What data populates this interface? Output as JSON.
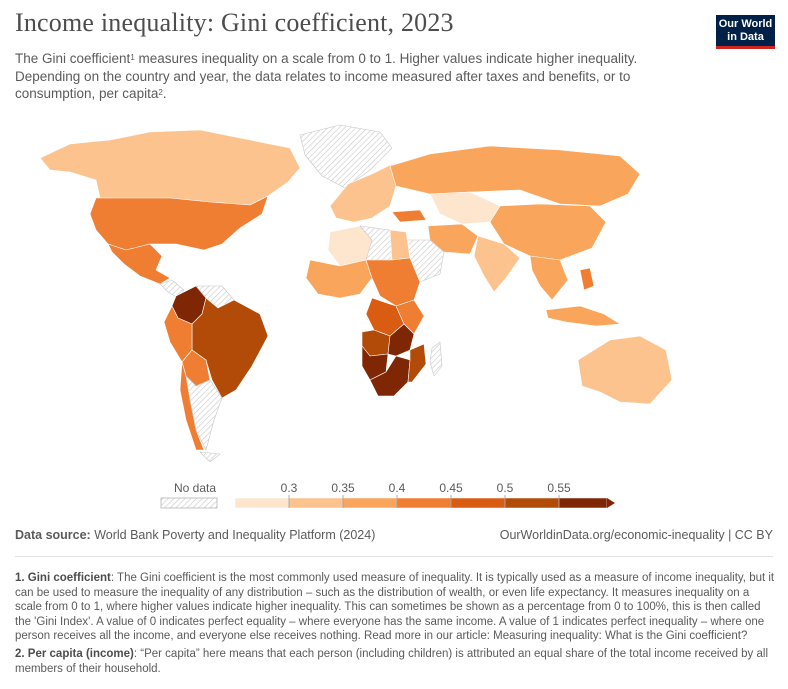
{
  "header": {
    "title": "Income inequality: Gini coefficient, 2023",
    "subtitle_part1": "The Gini coefficient",
    "subtitle_sup1": "1",
    "subtitle_part2": " measures inequality on a scale from 0 to 1. Higher values indicate higher inequality. Depending on the country and year, the data relates to income measured after taxes and benefits, or to consumption, per capita",
    "subtitle_sup2": "2",
    "subtitle_part3": "."
  },
  "logo": {
    "line1": "Our World",
    "line2": "in Data",
    "bg_color": "#002147",
    "accent_color": "#ce261e"
  },
  "legend": {
    "no_data_label": "No data",
    "ticks": [
      "0.3",
      "0.35",
      "0.4",
      "0.45",
      "0.5",
      "0.55"
    ],
    "colors": [
      "#fee6ce",
      "#fdc38e",
      "#f9a55c",
      "#ef7e33",
      "#d95c12",
      "#b24b08",
      "#7f2704"
    ]
  },
  "map": {
    "countries": [
      {
        "name": "Canada",
        "gini": 0.32
      },
      {
        "name": "United States",
        "gini": 0.41
      },
      {
        "name": "Mexico",
        "gini": 0.44
      },
      {
        "name": "Colombia",
        "gini": 0.55
      },
      {
        "name": "Venezuela",
        "gini": null
      },
      {
        "name": "Brazil",
        "gini": 0.52
      },
      {
        "name": "Peru",
        "gini": 0.4
      },
      {
        "name": "Bolivia",
        "gini": 0.41
      },
      {
        "name": "Chile",
        "gini": 0.43
      },
      {
        "name": "Argentina",
        "gini": null
      },
      {
        "name": "Greenland",
        "gini": null
      },
      {
        "name": "Russia",
        "gini": 0.36
      },
      {
        "name": "Europe",
        "gini": 0.31
      },
      {
        "name": "Turkey",
        "gini": 0.44
      },
      {
        "name": "Kazakhstan",
        "gini": 0.29
      },
      {
        "name": "China",
        "gini": 0.37
      },
      {
        "name": "India",
        "gini": 0.33
      },
      {
        "name": "Iran",
        "gini": 0.35
      },
      {
        "name": "Saudi Arabia",
        "gini": null
      },
      {
        "name": "Egypt",
        "gini": 0.31
      },
      {
        "name": "Libya",
        "gini": null
      },
      {
        "name": "Algeria",
        "gini": 0.28
      },
      {
        "name": "West Africa",
        "gini": 0.36
      },
      {
        "name": "Central Africa",
        "gini": 0.42
      },
      {
        "name": "DR Congo",
        "gini": 0.45
      },
      {
        "name": "Angola",
        "gini": 0.51
      },
      {
        "name": "Zambia",
        "gini": 0.55
      },
      {
        "name": "Namibia",
        "gini": 0.59
      },
      {
        "name": "South Africa",
        "gini": 0.63
      },
      {
        "name": "Mozambique",
        "gini": 0.54
      },
      {
        "name": "Madagascar",
        "gini": null
      },
      {
        "name": "Southeast Asia",
        "gini": 0.36
      },
      {
        "name": "Philippines",
        "gini": 0.41
      },
      {
        "name": "Indonesia",
        "gini": 0.38
      },
      {
        "name": "Australia",
        "gini": 0.33
      },
      {
        "name": "Antarctica/Islands",
        "gini": null
      }
    ]
  },
  "footer": {
    "source_label": "Data source:",
    "source_text": " World Bank Poverty and Inequality Platform (2024)",
    "url": "OurWorldinData.org/economic-inequality | CC BY"
  },
  "notes": {
    "note1_label": "1. Gini coefficient",
    "note1_text": ": The Gini coefficient is the most commonly used measure of inequality. It is typically used as a measure of income inequality, but it can be used to measure the inequality of any distribution – such as the distribution of wealth, or even life expectancy. It measures inequality on a scale from 0 to 1, where higher values indicate higher inequality. This can sometimes be shown as a percentage from 0 to 100%, this is then called the 'Gini Index'. A value of 0 indicates perfect equality – where everyone has the same income. A value of 1 indicates perfect inequality – where one person receives all the income, and everyone else receives nothing. Read more in our article: Measuring inequality: What is the Gini coefficient?",
    "note2_label": "2. Per capita (income)",
    "note2_text": ": “Per capita” here means that each person (including children) is attributed an equal share of the total income received by all members of their household."
  }
}
